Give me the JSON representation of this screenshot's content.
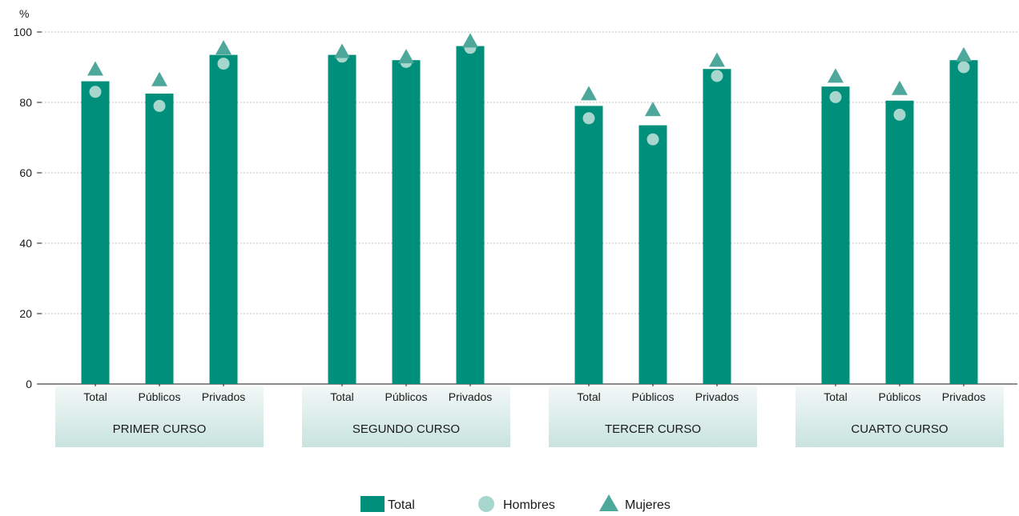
{
  "colors": {
    "total": "#008f7a",
    "hombres": "#a6d6cd",
    "mujeres": "#4ea79b",
    "group_band_top": "#f2f8f7",
    "group_band_bottom": "#c8e3de",
    "grid": "#b0b0b0"
  },
  "chart_data": {
    "type": "bar",
    "ylabel": "%",
    "ylim": [
      0,
      100
    ],
    "yticks": [
      0,
      20,
      40,
      60,
      80,
      100
    ],
    "grid": true,
    "legend_position": "bottom-center",
    "groups": [
      {
        "label": "PRIMER CURSO",
        "categories": [
          "Total",
          "Públicos",
          "Privados"
        ]
      },
      {
        "label": "SEGUNDO CURSO",
        "categories": [
          "Total",
          "Públicos",
          "Privados"
        ]
      },
      {
        "label": "TERCER CURSO",
        "categories": [
          "Total",
          "Públicos",
          "Privados"
        ]
      },
      {
        "label": "CUARTO CURSO",
        "categories": [
          "Total",
          "Públicos",
          "Privados"
        ]
      }
    ],
    "series": [
      {
        "name": "Total",
        "mark": "bar",
        "values": [
          86,
          82.5,
          93.5,
          93.5,
          92,
          96,
          79,
          73.5,
          89.5,
          84.5,
          80.5,
          92
        ]
      },
      {
        "name": "Hombres",
        "mark": "circle",
        "values": [
          83,
          79,
          91,
          93,
          91.5,
          95.5,
          75.5,
          69.5,
          87.5,
          81.5,
          76.5,
          90
        ]
      },
      {
        "name": "Mujeres",
        "mark": "triangle",
        "values": [
          89,
          86,
          95,
          94,
          92.5,
          97,
          82,
          77.5,
          91.5,
          87,
          83.5,
          93
        ]
      }
    ]
  }
}
